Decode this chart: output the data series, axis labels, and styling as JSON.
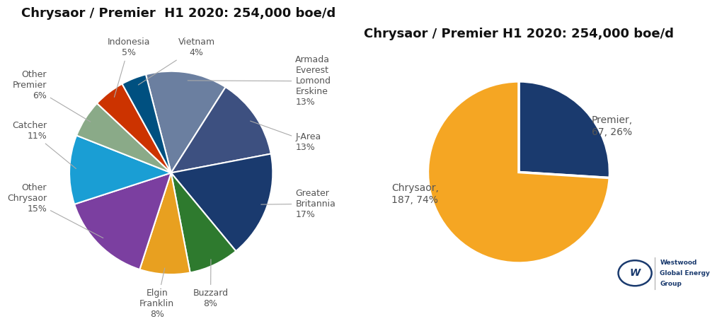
{
  "title1": "Chrysaor / Premier  H1 2020: 254,000 boe/d",
  "title2": "Chrysaor / Premier H1 2020: 254,000 boe/d",
  "pie1_values": [
    13,
    13,
    17,
    8,
    8,
    15,
    11,
    6,
    5,
    4
  ],
  "pie1_colors": [
    "#6b7fa0",
    "#3d5080",
    "#1a3a6e",
    "#2e7a2e",
    "#e8a020",
    "#7b3fa0",
    "#1a9ed4",
    "#8aaa88",
    "#cc3300",
    "#005080"
  ],
  "pie1_labels_short": [
    "Armada\nEverest\nLomond\nErskine\n13%",
    "J-Area\n13%",
    "Greater\nBritannia\n17%",
    "Buzzard\n8%",
    "Elgin\nFranklin\n8%",
    "Other\nChrysaor\n15%",
    "Catcher\n11%",
    "Other\nPremier\n6%",
    "Indonesia\n5%",
    "Vietnam\n4%"
  ],
  "pie2_values": [
    26,
    74
  ],
  "pie2_colors": [
    "#1a3a6e",
    "#f5a623"
  ],
  "pie2_label_premier": "Premier,\n67, 26%",
  "pie2_label_chrysaor": "Chrysaor,\n187, 74%",
  "bg_color": "#ffffff",
  "text_color": "#555555",
  "title_fontsize": 13,
  "label_fontsize": 9,
  "logo_color": "#1a3a6e"
}
